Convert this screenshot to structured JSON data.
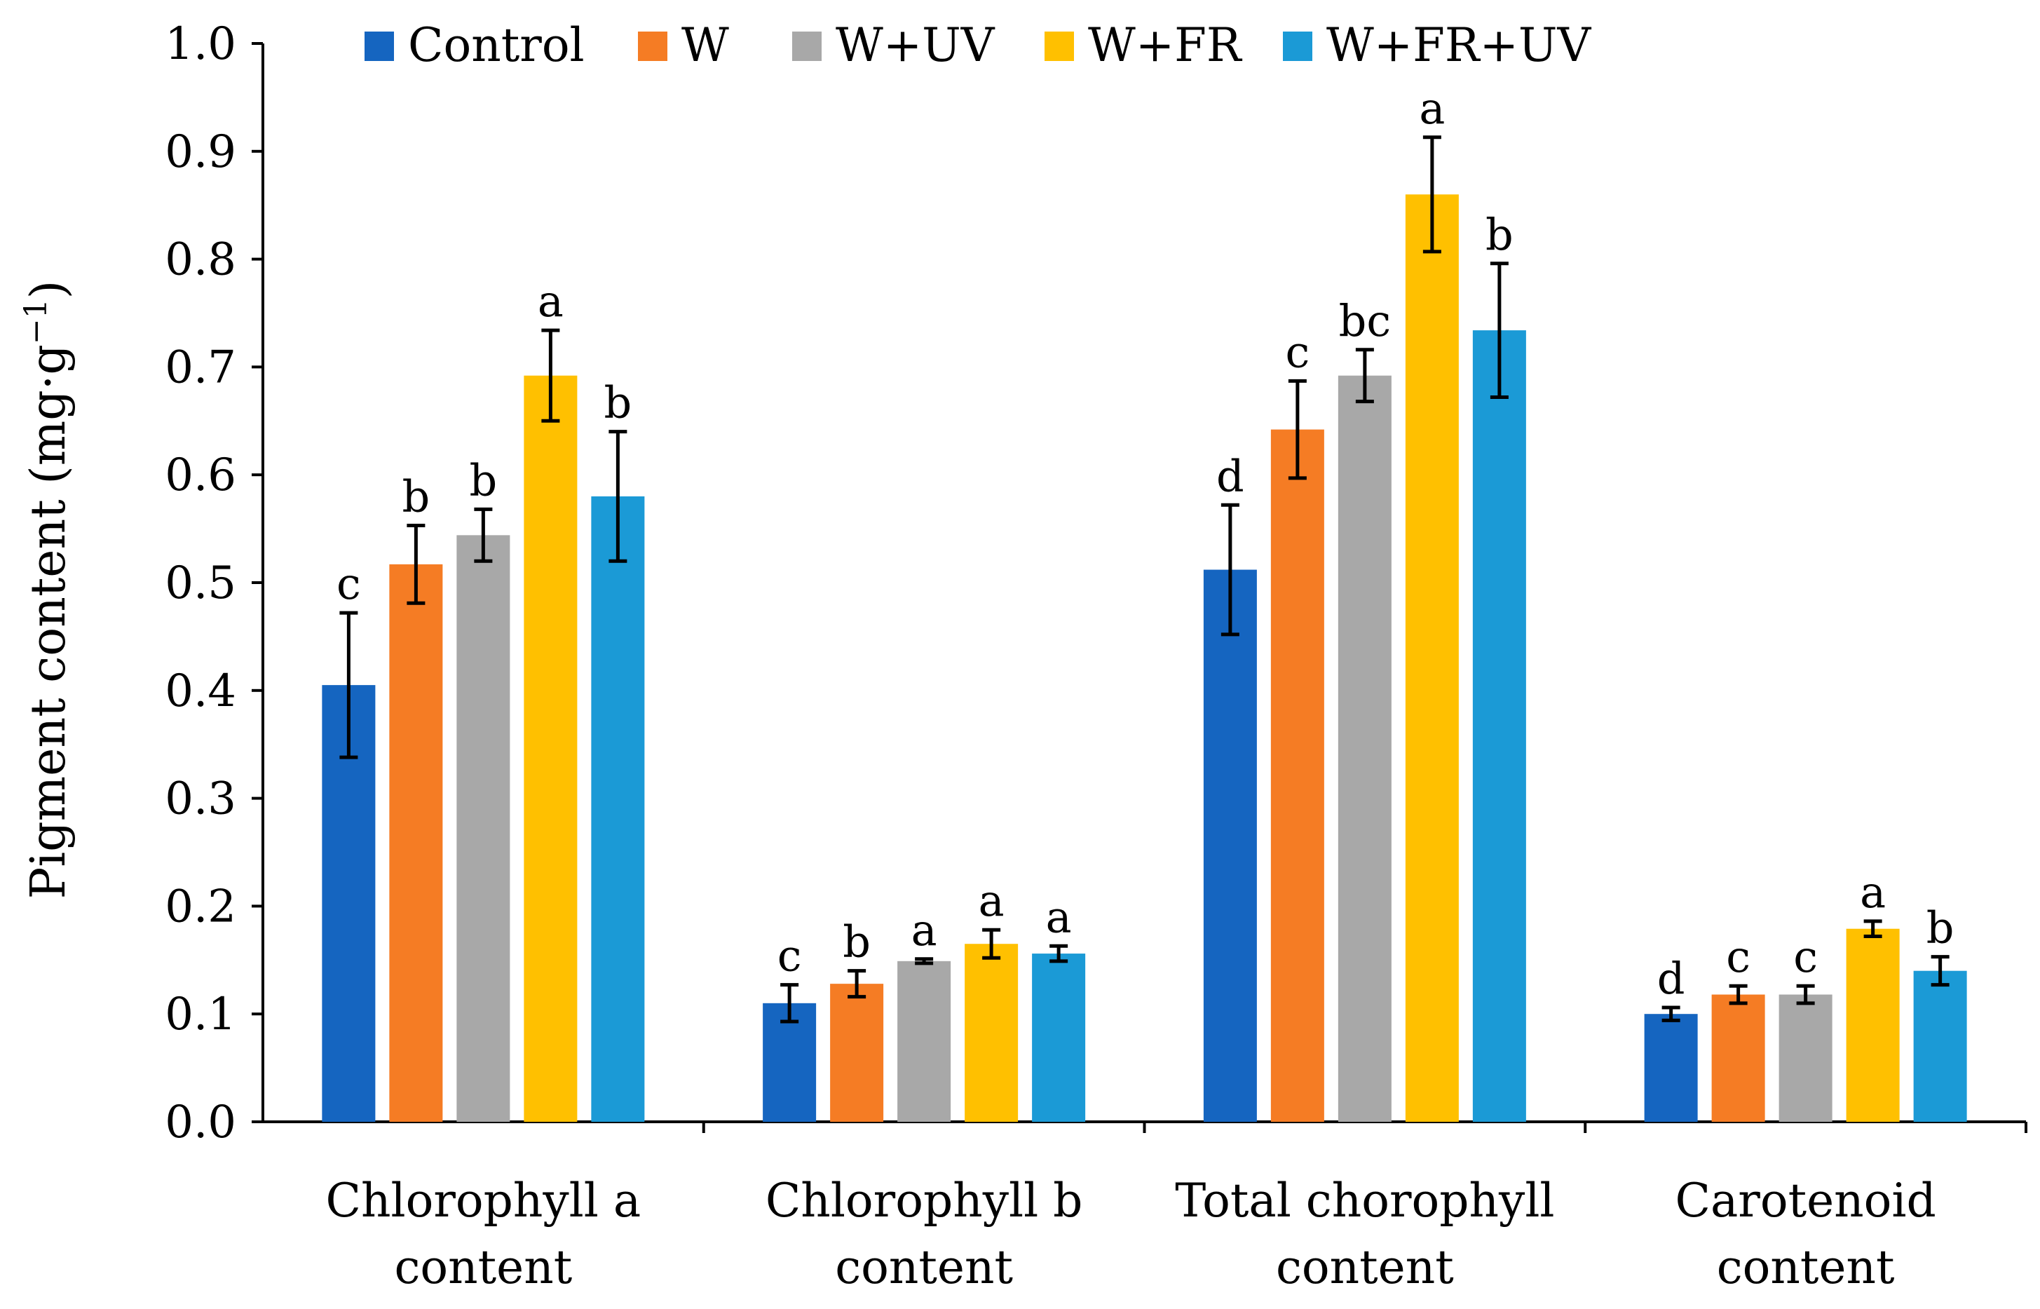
{
  "chart_data": {
    "type": "bar",
    "title": "",
    "xlabel": "",
    "ylabel": "Pigment content (mg·g",
    "ylabel_superscript": "−1",
    "ylabel_close": ")",
    "ylim": [
      0,
      1.0
    ],
    "yticks": [
      "0.0",
      "0.1",
      "0.2",
      "0.3",
      "0.4",
      "0.5",
      "0.6",
      "0.7",
      "0.8",
      "0.9",
      "1.0"
    ],
    "categories": [
      [
        "Chlorophyll a",
        "content"
      ],
      [
        "Chlorophyll b",
        "content"
      ],
      [
        "Total chorophyll",
        "content"
      ],
      [
        "Carotenoid",
        "content"
      ]
    ],
    "series": [
      {
        "name": "Control",
        "color": "#1565C0",
        "values": [
          0.405,
          0.11,
          0.512,
          0.1
        ],
        "errors": [
          0.067,
          0.017,
          0.06,
          0.006
        ],
        "letters": [
          "c",
          "c",
          "d",
          "d"
        ]
      },
      {
        "name": "W",
        "color": "#F57C24",
        "values": [
          0.517,
          0.128,
          0.642,
          0.118
        ],
        "errors": [
          0.036,
          0.012,
          0.045,
          0.008
        ],
        "letters": [
          "b",
          "b",
          "c",
          "c"
        ]
      },
      {
        "name": "W+UV",
        "color": "#A8A8A8",
        "values": [
          0.544,
          0.149,
          0.692,
          0.118
        ],
        "errors": [
          0.024,
          0.002,
          0.024,
          0.008
        ],
        "letters": [
          "b",
          "a",
          "bc",
          "c"
        ]
      },
      {
        "name": "W+FR",
        "color": "#FFC000",
        "values": [
          0.692,
          0.165,
          0.86,
          0.179
        ],
        "errors": [
          0.042,
          0.013,
          0.053,
          0.007
        ],
        "letters": [
          "a",
          "a",
          "a",
          "a"
        ]
      },
      {
        "name": "W+FR+UV",
        "color": "#1B9AD6",
        "values": [
          0.58,
          0.156,
          0.734,
          0.14
        ],
        "errors": [
          0.06,
          0.007,
          0.062,
          0.013
        ],
        "letters": [
          "b",
          "a",
          "b",
          "b"
        ]
      }
    ],
    "legend_position": "top-center",
    "grid": false
  }
}
